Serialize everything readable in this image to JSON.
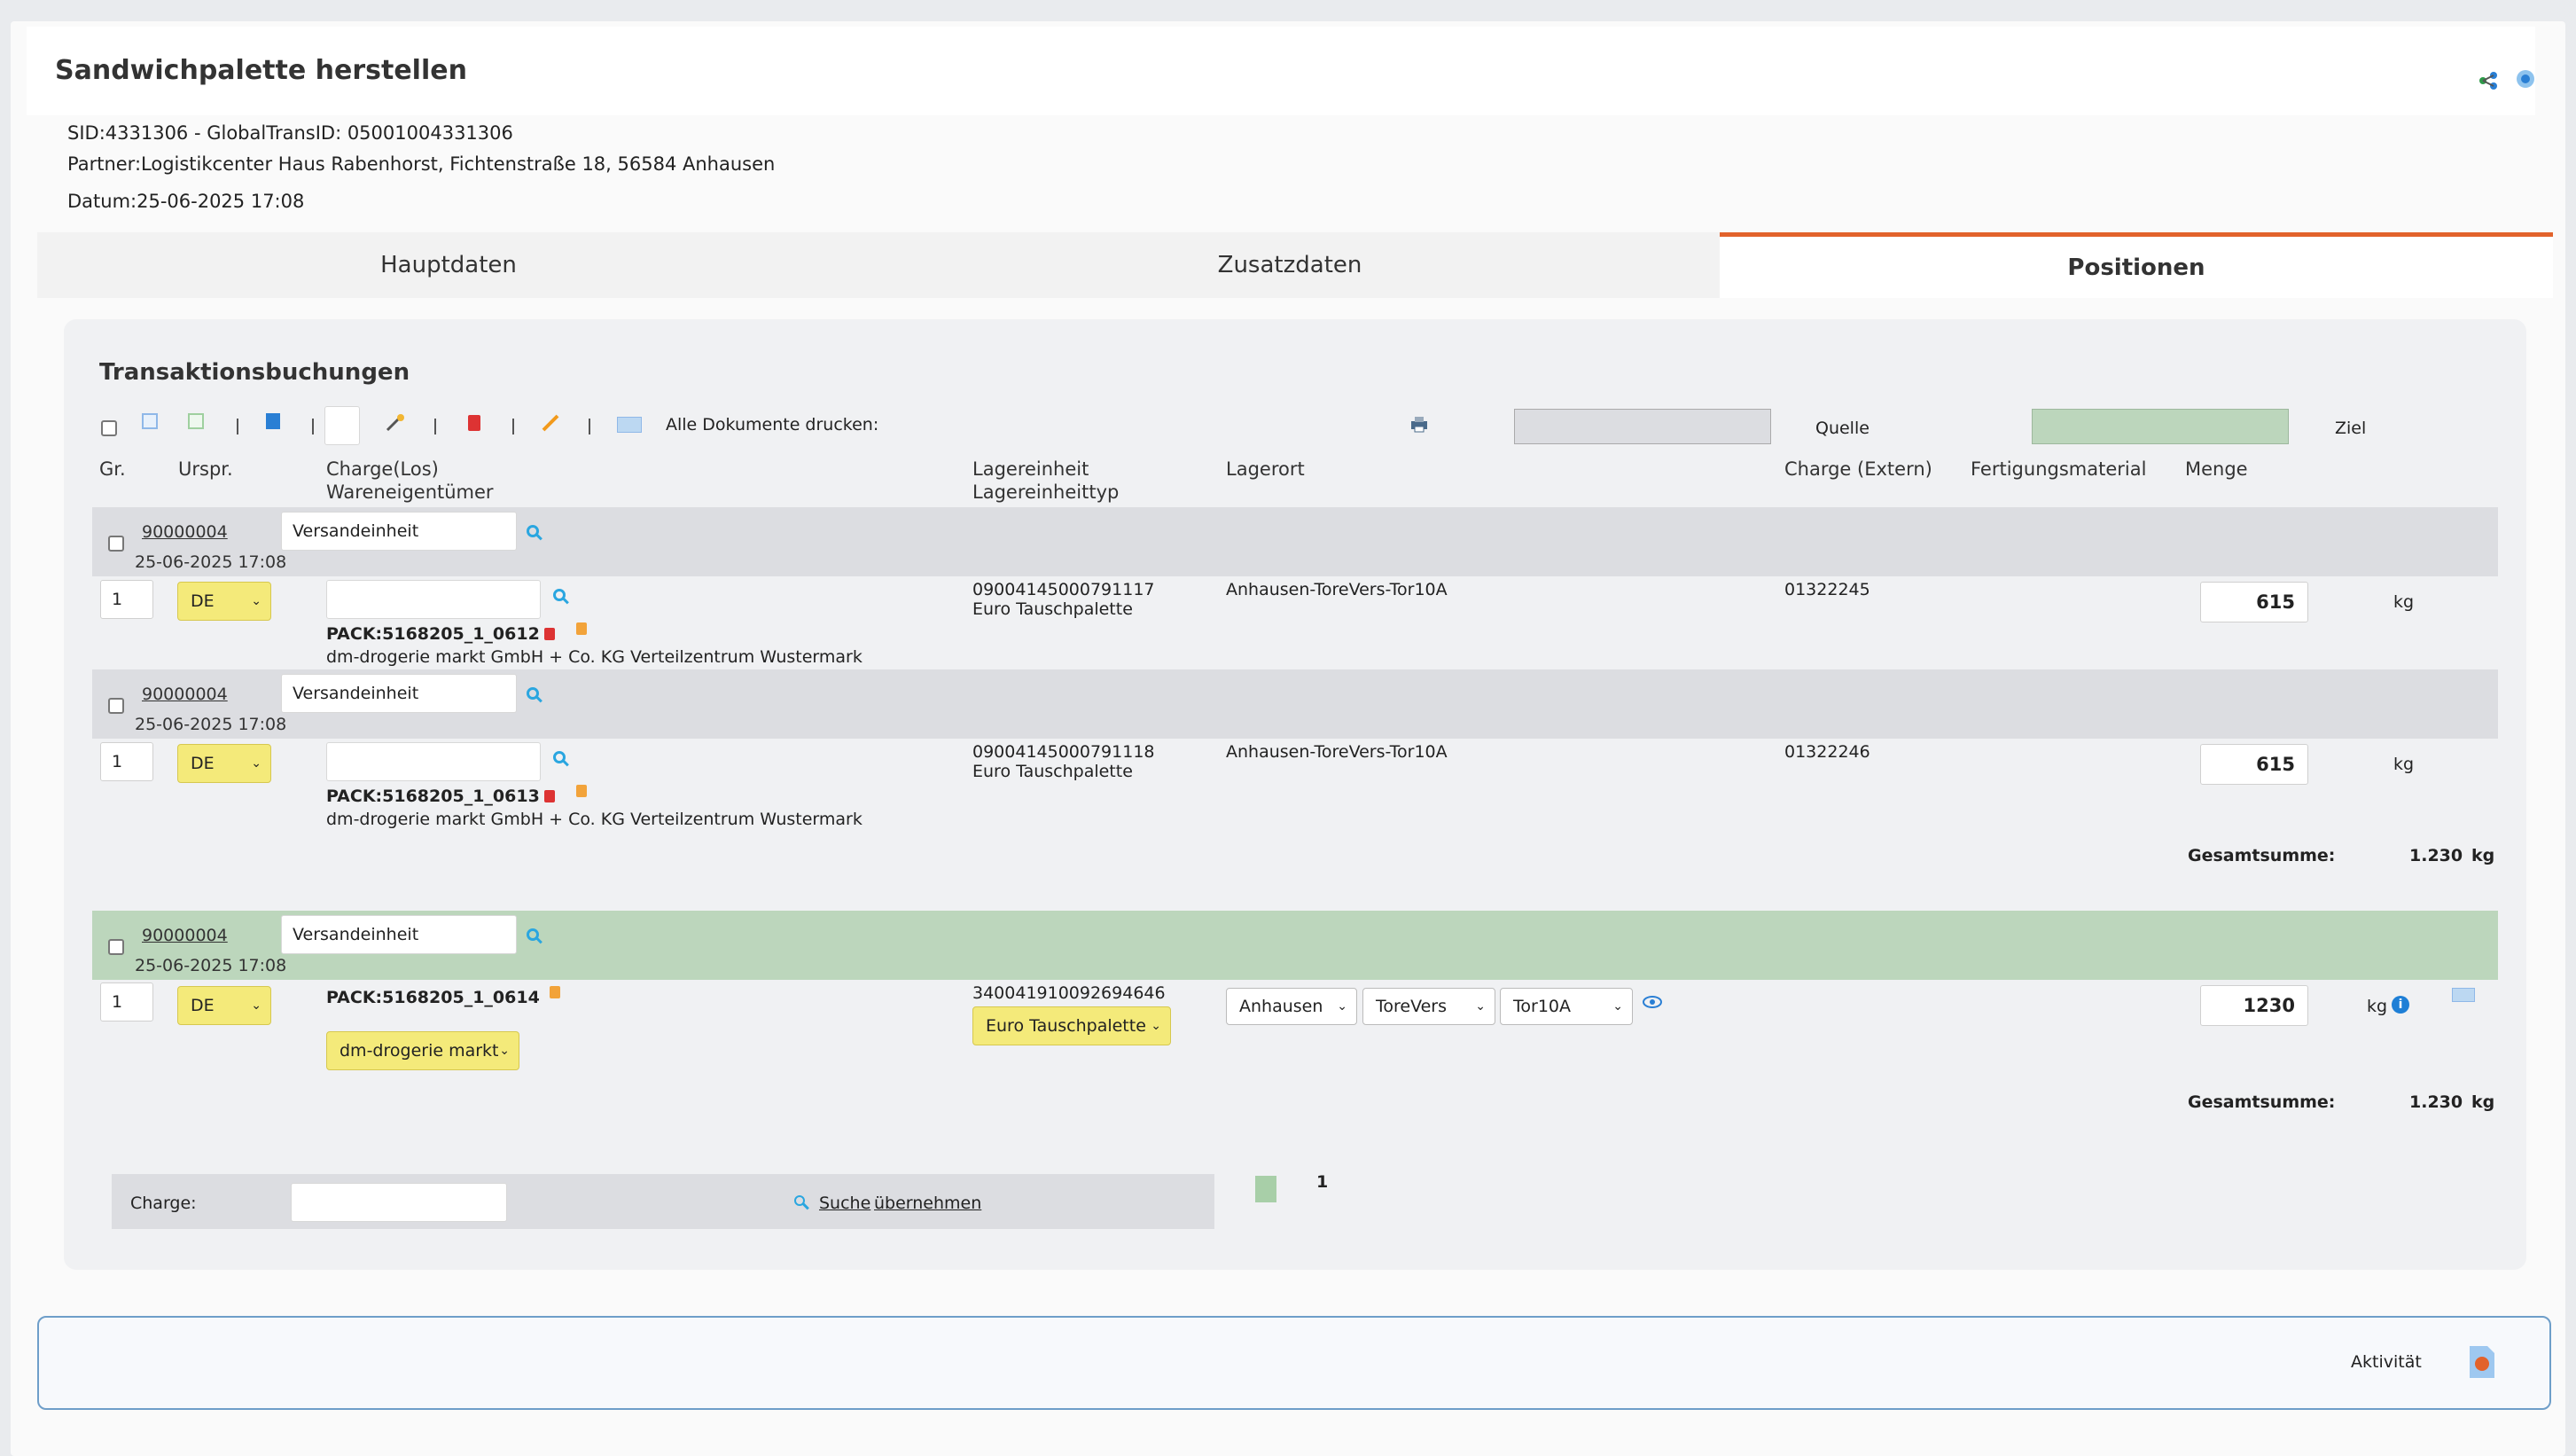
{
  "header": {
    "title": "Sandwichpalette herstellen",
    "sid_line": "SID:4331306 - GlobalTransID: 05001004331306",
    "partner_line": "Partner:Logistikcenter Haus Rabenhorst, Fichtenstraße 18, 56584 Anhausen",
    "date_line": "Datum:25-06-2025 17:08"
  },
  "tabs": [
    {
      "label": "Hauptdaten",
      "active": false
    },
    {
      "label": "Zusatzdaten",
      "active": false
    },
    {
      "label": "Positionen",
      "active": true
    }
  ],
  "section": {
    "title": "Transaktionsbuchungen",
    "print_all_label": "Alle Dokumente drucken:",
    "legend_source": "Quelle",
    "legend_target": "Ziel"
  },
  "columns": {
    "gr": "Gr.",
    "urspr": "Urspr.",
    "charge_los": "Charge(Los)",
    "wareneigentuemer": "Wareneigentümer",
    "lagereinheit": "Lagereinheit",
    "lagereinheittyp": "Lagereinheittyp",
    "lagerort": "Lagerort",
    "charge_extern": "Charge (Extern)",
    "fertigungsmaterial": "Fertigungsmaterial",
    "menge": "Menge"
  },
  "groups": [
    {
      "pos_number": "90000004",
      "date": "25-06-2025 17:08",
      "type_value": "Versandeinheit",
      "gr": "1",
      "origin": "DE",
      "pack": "PACK:5168205_1_0612",
      "owner": "dm-drogerie markt GmbH + Co. KG Verteilzentrum Wustermark",
      "unit_id": "09004145000791117",
      "unit_type": "Euro Tauschpalette",
      "location": "Anhausen-ToreVers-Tor10A",
      "charge_ext": "01322245",
      "qty": "615",
      "unit": "kg"
    },
    {
      "pos_number": "90000004",
      "date": "25-06-2025 17:08",
      "type_value": "Versandeinheit",
      "gr": "1",
      "origin": "DE",
      "pack": "PACK:5168205_1_0613",
      "owner": "dm-drogerie markt GmbH + Co. KG Verteilzentrum Wustermark",
      "unit_id": "09004145000791118",
      "unit_type": "Euro Tauschpalette",
      "location": "Anhausen-ToreVers-Tor10A",
      "charge_ext": "01322246",
      "qty": "615",
      "unit": "kg"
    }
  ],
  "source_total": {
    "label": "Gesamtsumme:",
    "value": "1.230",
    "unit": "kg"
  },
  "target": {
    "pos_number": "90000004",
    "date": "25-06-2025 17:08",
    "type_value": "Versandeinheit",
    "gr": "1",
    "origin": "DE",
    "pack": "PACK:5168205_1_0614",
    "owner_select": "dm-drogerie markt",
    "unit_id": "340041910092694646",
    "unit_type_select": "Euro Tauschpalette",
    "loc1": "Anhausen",
    "loc2": "ToreVers",
    "loc3": "Tor10A",
    "qty": "1230",
    "unit": "kg",
    "info": "i"
  },
  "target_total": {
    "label": "Gesamtsumme:",
    "value": "1.230",
    "unit": "kg"
  },
  "search": {
    "label": "Charge:",
    "value": "",
    "link_search": "Suche",
    "link_accept": "übernehmen"
  },
  "pagination": {
    "page": "1"
  },
  "footer": {
    "activity_label": "Aktivität"
  },
  "colors": {
    "accent": "#e2622b",
    "source_gray": "#dcdde1",
    "target_green": "#bcd6bc",
    "select_yellow": "#f4ea7a"
  }
}
